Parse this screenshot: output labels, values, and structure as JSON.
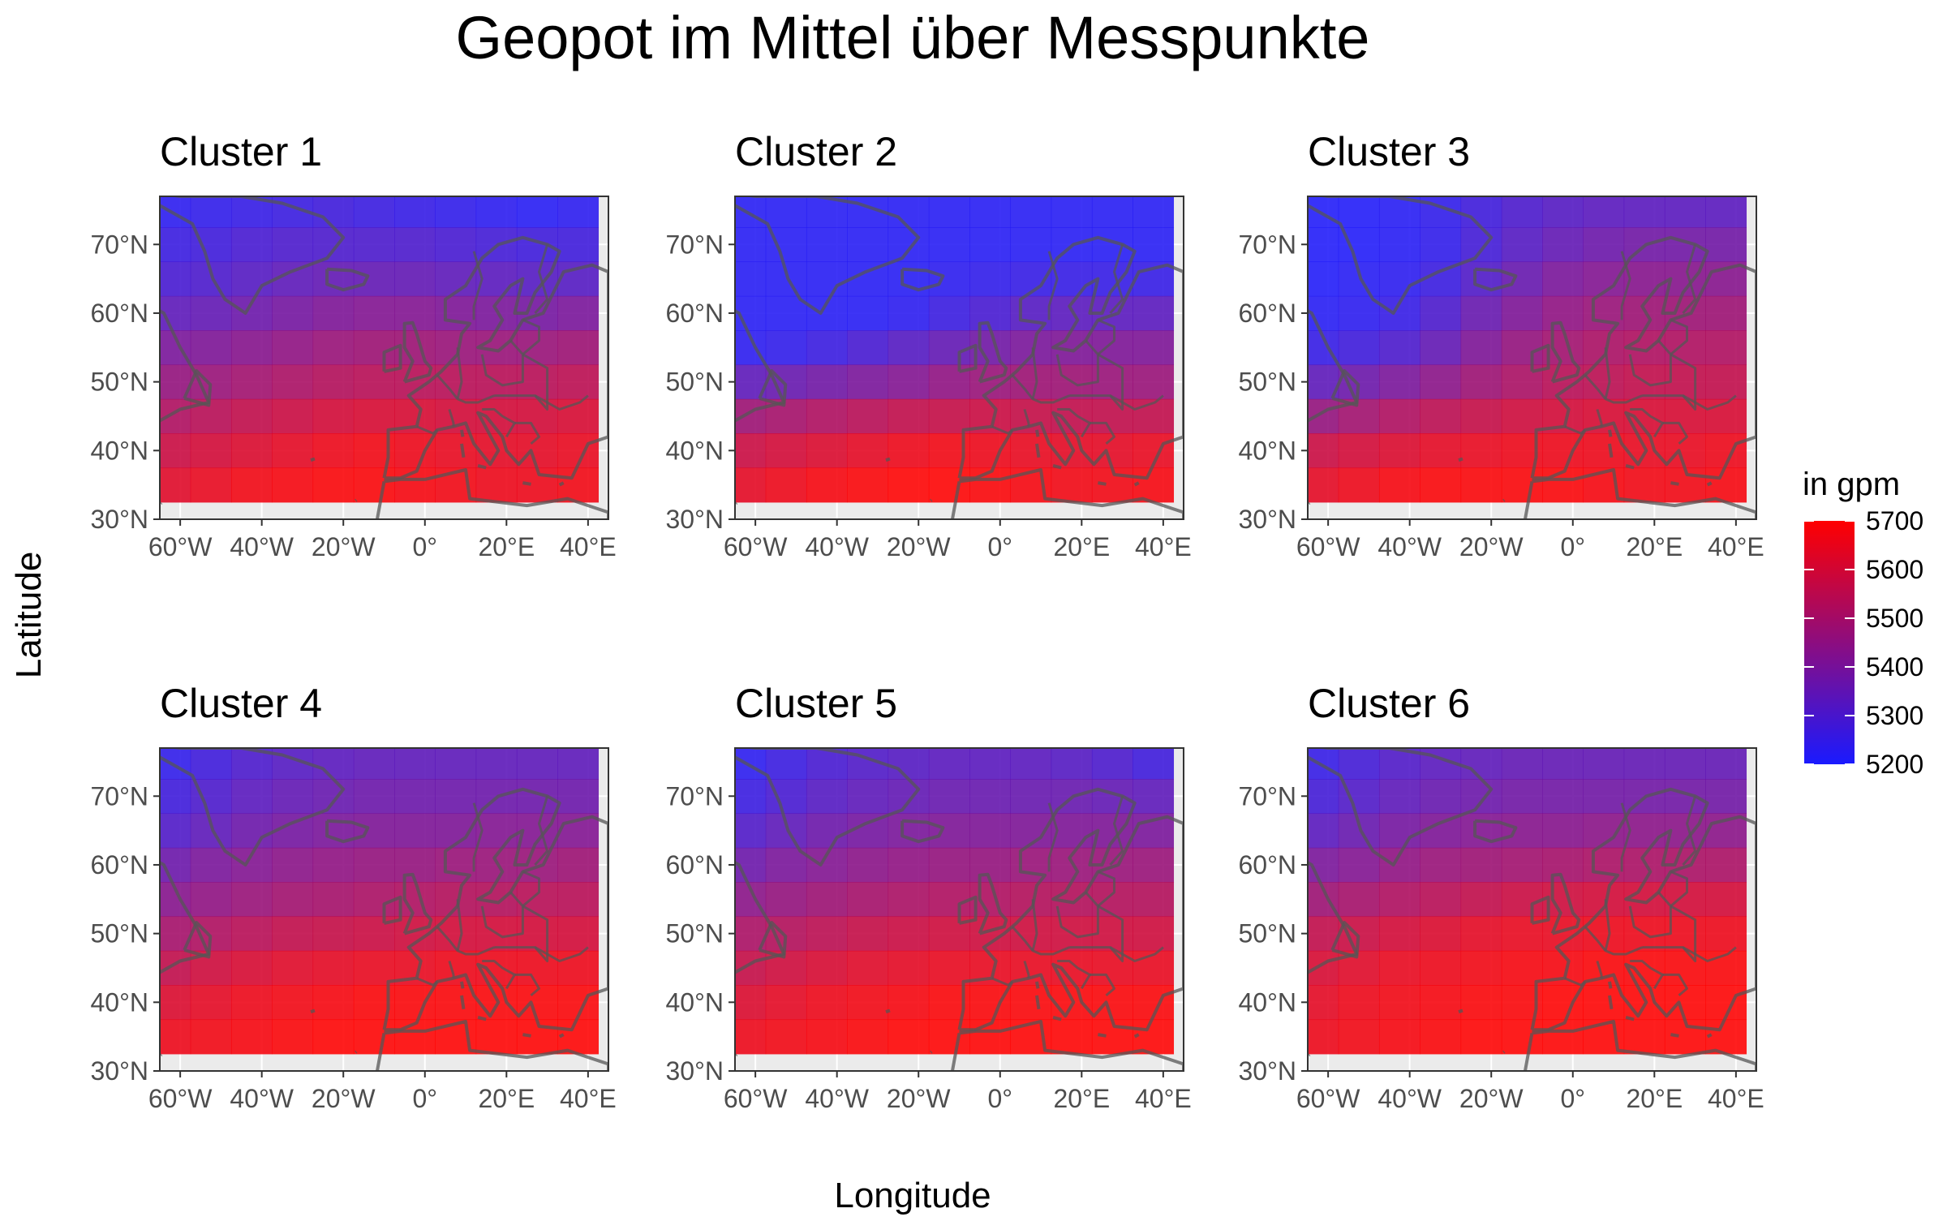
{
  "title": "Geopot im Mittel über Messpunkte",
  "x_label": "Longitude",
  "y_label": "Latitude",
  "legend": {
    "title": "in gpm",
    "ticks": [
      "5700",
      "5600",
      "5500",
      "5400",
      "5300",
      "5200"
    ],
    "min": 5200,
    "max": 5700,
    "low_color": "#1a1aff",
    "high_color": "#ff0000"
  },
  "lon_ticks": [
    "60°W",
    "40°W",
    "20°W",
    "0°",
    "20°E",
    "40°E"
  ],
  "lat_ticks": [
    "70°N",
    "60°N",
    "50°N",
    "40°N",
    "30°N"
  ],
  "colors": {
    "panel_bg": "#ebebeb",
    "coast": "#555555",
    "frame": "#333333"
  },
  "chart_data": {
    "type": "heatmap",
    "x_label": "Longitude",
    "y_label": "Latitude",
    "lon_values": [
      -62.5,
      -52.5,
      -42.5,
      -32.5,
      -22.5,
      -12.5,
      -2.5,
      7.5,
      17.5,
      27.5,
      37.5
    ],
    "lat_values": [
      75,
      70,
      65,
      60,
      55,
      50,
      45,
      40,
      35
    ],
    "xlim": [
      -65,
      45
    ],
    "ylim": [
      30,
      77
    ],
    "panels": [
      {
        "name": "Cluster 1",
        "values": [
          [
            5230,
            5240,
            5250,
            5260,
            5270,
            5260,
            5250,
            5240,
            5230,
            5220,
            5230
          ],
          [
            5260,
            5270,
            5290,
            5300,
            5300,
            5300,
            5300,
            5290,
            5280,
            5270,
            5270
          ],
          [
            5290,
            5300,
            5320,
            5340,
            5350,
            5350,
            5350,
            5340,
            5330,
            5320,
            5320
          ],
          [
            5340,
            5350,
            5370,
            5390,
            5410,
            5420,
            5420,
            5410,
            5400,
            5390,
            5400
          ],
          [
            5400,
            5410,
            5430,
            5450,
            5470,
            5480,
            5480,
            5470,
            5470,
            5470,
            5480
          ],
          [
            5460,
            5470,
            5490,
            5510,
            5530,
            5540,
            5540,
            5540,
            5540,
            5540,
            5550
          ],
          [
            5520,
            5540,
            5560,
            5580,
            5600,
            5610,
            5610,
            5600,
            5600,
            5600,
            5610
          ],
          [
            5580,
            5600,
            5620,
            5640,
            5660,
            5670,
            5660,
            5650,
            5640,
            5640,
            5650
          ],
          [
            5630,
            5650,
            5670,
            5680,
            5690,
            5690,
            5680,
            5670,
            5660,
            5660,
            5670
          ]
        ]
      },
      {
        "name": "Cluster 2",
        "values": [
          [
            5220,
            5220,
            5220,
            5220,
            5220,
            5220,
            5220,
            5220,
            5220,
            5220,
            5220
          ],
          [
            5220,
            5220,
            5220,
            5220,
            5220,
            5220,
            5220,
            5220,
            5220,
            5220,
            5220
          ],
          [
            5220,
            5220,
            5220,
            5220,
            5220,
            5230,
            5240,
            5250,
            5250,
            5250,
            5250
          ],
          [
            5220,
            5220,
            5220,
            5220,
            5230,
            5260,
            5290,
            5320,
            5330,
            5330,
            5330
          ],
          [
            5230,
            5240,
            5260,
            5290,
            5320,
            5350,
            5380,
            5400,
            5410,
            5410,
            5410
          ],
          [
            5340,
            5360,
            5380,
            5400,
            5420,
            5450,
            5470,
            5480,
            5480,
            5470,
            5470
          ],
          [
            5480,
            5500,
            5520,
            5540,
            5560,
            5570,
            5580,
            5570,
            5560,
            5560,
            5560
          ],
          [
            5580,
            5600,
            5620,
            5640,
            5660,
            5670,
            5660,
            5650,
            5640,
            5640,
            5650
          ],
          [
            5640,
            5660,
            5680,
            5690,
            5700,
            5700,
            5690,
            5680,
            5670,
            5670,
            5680
          ]
        ]
      },
      {
        "name": "Cluster 3",
        "values": [
          [
            5210,
            5210,
            5220,
            5240,
            5270,
            5300,
            5320,
            5330,
            5330,
            5330,
            5330
          ],
          [
            5210,
            5210,
            5220,
            5240,
            5280,
            5320,
            5350,
            5370,
            5380,
            5380,
            5380
          ],
          [
            5210,
            5220,
            5230,
            5260,
            5310,
            5360,
            5400,
            5420,
            5430,
            5430,
            5430
          ],
          [
            5220,
            5230,
            5250,
            5300,
            5360,
            5410,
            5450,
            5470,
            5480,
            5480,
            5480
          ],
          [
            5250,
            5270,
            5300,
            5350,
            5410,
            5460,
            5490,
            5510,
            5520,
            5520,
            5520
          ],
          [
            5340,
            5370,
            5400,
            5440,
            5480,
            5510,
            5540,
            5550,
            5560,
            5560,
            5560
          ],
          [
            5460,
            5490,
            5520,
            5550,
            5570,
            5590,
            5600,
            5610,
            5610,
            5610,
            5610
          ],
          [
            5580,
            5600,
            5620,
            5640,
            5650,
            5660,
            5660,
            5660,
            5650,
            5650,
            5660
          ],
          [
            5640,
            5660,
            5680,
            5690,
            5690,
            5690,
            5690,
            5680,
            5670,
            5670,
            5680
          ]
        ]
      },
      {
        "name": "Cluster 4",
        "values": [
          [
            5240,
            5270,
            5300,
            5320,
            5330,
            5340,
            5340,
            5340,
            5340,
            5340,
            5340
          ],
          [
            5270,
            5300,
            5330,
            5350,
            5360,
            5370,
            5370,
            5370,
            5370,
            5370,
            5370
          ],
          [
            5310,
            5340,
            5370,
            5390,
            5400,
            5410,
            5410,
            5410,
            5420,
            5420,
            5420
          ],
          [
            5370,
            5400,
            5420,
            5440,
            5450,
            5460,
            5460,
            5470,
            5470,
            5470,
            5480
          ],
          [
            5430,
            5450,
            5470,
            5490,
            5500,
            5510,
            5520,
            5530,
            5530,
            5540,
            5540
          ],
          [
            5500,
            5520,
            5540,
            5560,
            5570,
            5580,
            5590,
            5600,
            5600,
            5600,
            5600
          ],
          [
            5560,
            5590,
            5610,
            5630,
            5640,
            5650,
            5650,
            5660,
            5660,
            5660,
            5660
          ],
          [
            5620,
            5640,
            5660,
            5670,
            5680,
            5690,
            5690,
            5690,
            5690,
            5690,
            5690
          ],
          [
            5660,
            5670,
            5680,
            5690,
            5700,
            5700,
            5700,
            5700,
            5700,
            5700,
            5700
          ]
        ]
      },
      {
        "name": "Cluster 5",
        "values": [
          [
            5230,
            5260,
            5290,
            5310,
            5320,
            5330,
            5330,
            5330,
            5320,
            5300,
            5270
          ],
          [
            5260,
            5290,
            5320,
            5340,
            5350,
            5360,
            5360,
            5360,
            5360,
            5350,
            5340
          ],
          [
            5310,
            5340,
            5370,
            5390,
            5400,
            5410,
            5410,
            5410,
            5410,
            5410,
            5400
          ],
          [
            5370,
            5400,
            5420,
            5440,
            5450,
            5460,
            5460,
            5470,
            5470,
            5470,
            5470
          ],
          [
            5440,
            5460,
            5480,
            5500,
            5510,
            5520,
            5520,
            5530,
            5530,
            5530,
            5530
          ],
          [
            5510,
            5530,
            5550,
            5570,
            5580,
            5590,
            5590,
            5590,
            5590,
            5590,
            5590
          ],
          [
            5570,
            5590,
            5610,
            5630,
            5640,
            5650,
            5650,
            5650,
            5650,
            5650,
            5650
          ],
          [
            5620,
            5640,
            5660,
            5670,
            5680,
            5690,
            5690,
            5690,
            5690,
            5690,
            5690
          ],
          [
            5660,
            5670,
            5680,
            5690,
            5700,
            5700,
            5700,
            5700,
            5700,
            5700,
            5700
          ]
        ]
      },
      {
        "name": "Cluster 6",
        "values": [
          [
            5250,
            5280,
            5310,
            5330,
            5340,
            5350,
            5350,
            5350,
            5350,
            5350,
            5350
          ],
          [
            5280,
            5310,
            5340,
            5360,
            5370,
            5380,
            5380,
            5380,
            5380,
            5380,
            5380
          ],
          [
            5330,
            5360,
            5390,
            5410,
            5420,
            5430,
            5430,
            5440,
            5440,
            5440,
            5440
          ],
          [
            5400,
            5420,
            5450,
            5470,
            5480,
            5490,
            5500,
            5510,
            5510,
            5510,
            5510
          ],
          [
            5480,
            5500,
            5520,
            5540,
            5560,
            5580,
            5590,
            5600,
            5600,
            5600,
            5600
          ],
          [
            5560,
            5580,
            5600,
            5620,
            5640,
            5650,
            5650,
            5660,
            5660,
            5660,
            5660
          ],
          [
            5610,
            5630,
            5650,
            5660,
            5670,
            5680,
            5680,
            5690,
            5690,
            5690,
            5690
          ],
          [
            5640,
            5660,
            5670,
            5680,
            5690,
            5690,
            5700,
            5700,
            5700,
            5700,
            5700
          ],
          [
            5660,
            5670,
            5680,
            5690,
            5700,
            5700,
            5700,
            5700,
            5700,
            5700,
            5700
          ]
        ]
      }
    ]
  }
}
